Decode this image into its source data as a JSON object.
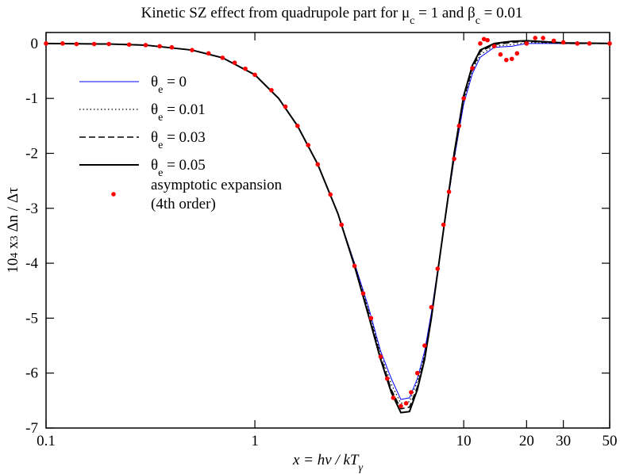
{
  "chart_data": {
    "type": "line",
    "title": [
      "Kinetic SZ effect from quadrupole part for  μ",
      {
        "sub": "c"
      },
      " = 1 and β",
      {
        "sub": "c"
      },
      " = 0.01"
    ],
    "x_label": [
      "x = hν / kT",
      {
        "sub": "γ"
      }
    ],
    "y_label": [
      "10",
      {
        "sup": "4"
      },
      " x",
      {
        "sup": "3"
      },
      "  Δn / Δτ"
    ],
    "x_scale": "log",
    "xlim": [
      0.1,
      50
    ],
    "ylim": [
      -7,
      0.2
    ],
    "xticks": [
      0.1,
      1,
      10,
      20,
      30,
      50
    ],
    "yticks": [
      0,
      -1,
      -2,
      -3,
      -4,
      -5,
      -6,
      -7
    ],
    "x": [
      0.1,
      0.2,
      0.3,
      0.5,
      0.7,
      1,
      1.3,
      1.6,
      2,
      2.5,
      3,
      3.5,
      4,
      4.5,
      5,
      5.5,
      6,
      6.5,
      7,
      8,
      9,
      10,
      11,
      12,
      14,
      17,
      20,
      25,
      30,
      50
    ],
    "series": [
      {
        "name": [
          "θ",
          {
            "sub": "e"
          },
          " = 0"
        ],
        "color": "#0000ff",
        "mode": "lines",
        "dash": "solid",
        "width": 1,
        "values": [
          0,
          -0.01,
          -0.03,
          -0.12,
          -0.26,
          -0.57,
          -1.0,
          -1.5,
          -2.2,
          -3.1,
          -4.0,
          -4.8,
          -5.6,
          -6.1,
          -6.48,
          -6.45,
          -6.1,
          -5.6,
          -4.9,
          -3.4,
          -2.1,
          -1.1,
          -0.55,
          -0.25,
          -0.07,
          -0.05,
          0,
          0,
          0,
          0
        ]
      },
      {
        "name": [
          "θ",
          {
            "sub": "e"
          },
          " = 0.01"
        ],
        "color": "#000000",
        "mode": "lines",
        "dash": "dotted",
        "width": 1.2,
        "values": [
          0,
          -0.01,
          -0.03,
          -0.12,
          -0.26,
          -0.57,
          -1.0,
          -1.5,
          -2.2,
          -3.1,
          -4.0,
          -4.85,
          -5.65,
          -6.2,
          -6.55,
          -6.52,
          -6.15,
          -5.65,
          -4.95,
          -3.4,
          -2.1,
          -1.05,
          -0.5,
          -0.2,
          -0.05,
          -0.02,
          0.02,
          0.01,
          0,
          0
        ]
      },
      {
        "name": [
          "θ",
          {
            "sub": "e"
          },
          " = 0.03"
        ],
        "color": "#000000",
        "mode": "lines",
        "dash": "dashed",
        "width": 1.5,
        "values": [
          0,
          -0.01,
          -0.03,
          -0.12,
          -0.26,
          -0.57,
          -1.0,
          -1.5,
          -2.2,
          -3.1,
          -4.05,
          -4.9,
          -5.7,
          -6.3,
          -6.65,
          -6.62,
          -6.25,
          -5.7,
          -5.0,
          -3.4,
          -2.05,
          -1.0,
          -0.45,
          -0.15,
          -0.02,
          0.02,
          0.04,
          0.02,
          0,
          0
        ]
      },
      {
        "name": [
          "θ",
          {
            "sub": "e"
          },
          " = 0.05"
        ],
        "color": "#000000",
        "mode": "lines",
        "dash": "solid",
        "width": 2,
        "values": [
          0,
          -0.01,
          -0.03,
          -0.12,
          -0.26,
          -0.57,
          -1.0,
          -1.5,
          -2.2,
          -3.1,
          -4.05,
          -4.95,
          -5.75,
          -6.35,
          -6.72,
          -6.7,
          -6.3,
          -5.75,
          -5.0,
          -3.4,
          -2.0,
          -0.95,
          -0.4,
          -0.12,
          0,
          0.04,
          0.05,
          0.03,
          0.01,
          0
        ]
      },
      {
        "name": [
          "asymptotic expansion",
          "(4th order)"
        ],
        "color": "#ff0000",
        "mode": "markers",
        "x": [
          0.1,
          0.12,
          0.14,
          0.17,
          0.2,
          0.25,
          0.3,
          0.35,
          0.4,
          0.5,
          0.6,
          0.7,
          0.8,
          0.9,
          1,
          1.2,
          1.4,
          1.6,
          1.8,
          2,
          2.3,
          2.6,
          3,
          3.3,
          3.6,
          4,
          4.3,
          4.6,
          5,
          5.3,
          5.6,
          6,
          6.5,
          7,
          7.5,
          8,
          8.5,
          9,
          9.5,
          10,
          11,
          12,
          12.5,
          13,
          14,
          15,
          16,
          17,
          18,
          20,
          22,
          24,
          27,
          30,
          35,
          40,
          50
        ],
        "values": [
          0,
          0,
          -0.01,
          -0.01,
          -0.01,
          -0.02,
          -0.03,
          -0.05,
          -0.07,
          -0.12,
          -0.18,
          -0.26,
          -0.35,
          -0.46,
          -0.57,
          -0.85,
          -1.15,
          -1.5,
          -1.85,
          -2.2,
          -2.75,
          -3.3,
          -4.05,
          -4.55,
          -5.0,
          -5.7,
          -6.1,
          -6.45,
          -6.6,
          -6.55,
          -6.35,
          -6.0,
          -5.5,
          -4.8,
          -4.1,
          -3.3,
          -2.7,
          -2.1,
          -1.5,
          -1.0,
          -0.45,
          0.0,
          0.08,
          0.06,
          -0.05,
          -0.2,
          -0.3,
          -0.28,
          -0.18,
          0.0,
          0.1,
          0.1,
          0.05,
          0.02,
          0,
          0,
          0
        ]
      }
    ]
  }
}
